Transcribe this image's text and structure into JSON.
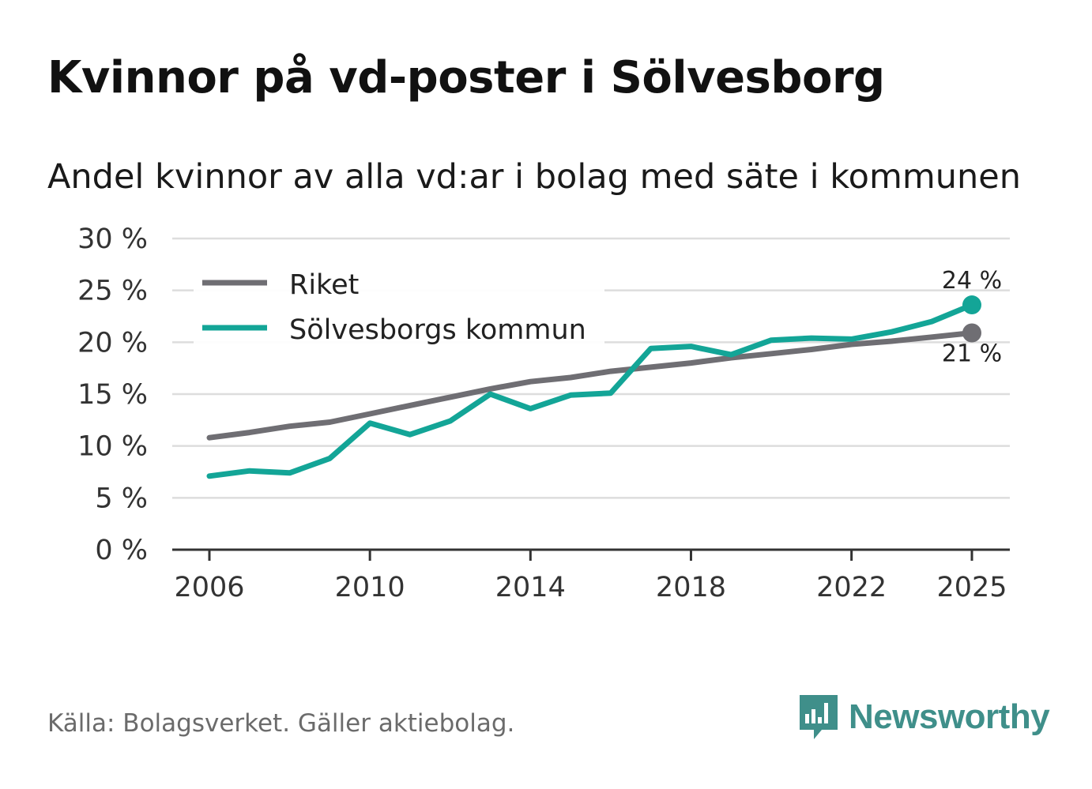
{
  "title": "Kvinnor på vd-poster i Sölvesborg",
  "subtitle": "Andel kvinnor av alla vd:ar i bolag med säte i kommunen",
  "source": "Källa: Bolagsverket. Gäller aktiebolag.",
  "brand": "Newsworthy",
  "colors": {
    "riket": "#6f6e73",
    "kommun": "#13a597",
    "grid": "#dddddd",
    "axis": "#333333"
  },
  "chart_data": {
    "type": "line",
    "x": [
      2006,
      2007,
      2008,
      2009,
      2010,
      2011,
      2012,
      2013,
      2014,
      2015,
      2016,
      2017,
      2018,
      2019,
      2020,
      2021,
      2022,
      2023,
      2024,
      2025
    ],
    "series": [
      {
        "name": "Riket",
        "values": [
          10.8,
          11.3,
          11.9,
          12.3,
          13.1,
          13.9,
          14.7,
          15.5,
          16.2,
          16.6,
          17.2,
          17.6,
          18.0,
          18.5,
          18.9,
          19.3,
          19.8,
          20.1,
          20.5,
          20.9
        ],
        "end_label": "21 %"
      },
      {
        "name": "Sölvesborgs kommun",
        "values": [
          7.1,
          7.6,
          7.4,
          8.8,
          12.2,
          11.1,
          12.4,
          15.0,
          13.6,
          14.9,
          15.1,
          19.4,
          19.6,
          18.8,
          20.2,
          20.4,
          20.3,
          21.0,
          22.0,
          23.6
        ],
        "end_label": "24 %"
      }
    ],
    "y_ticks": [
      0,
      5,
      10,
      15,
      20,
      25,
      30
    ],
    "y_tick_labels": [
      "0 %",
      "5 %",
      "10 %",
      "15 %",
      "20 %",
      "25 %",
      "30 %"
    ],
    "x_ticks": [
      2006,
      2010,
      2014,
      2018,
      2022,
      2025
    ],
    "x_tick_labels": [
      "2006",
      "2010",
      "2014",
      "2018",
      "2022",
      "2025"
    ],
    "ylim": [
      0,
      30
    ],
    "xlabel": "",
    "ylabel": "",
    "legend": "top-left",
    "grid": true
  }
}
